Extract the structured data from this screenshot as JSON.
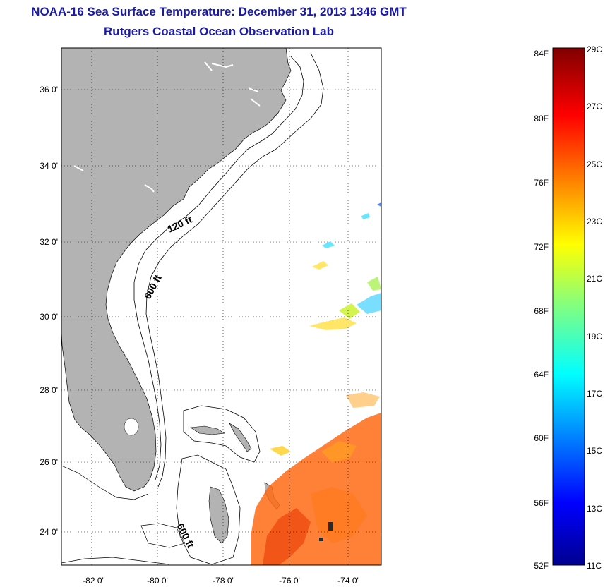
{
  "title": "NOAA-16 Sea Surface Temperature:  December 31, 2013 1346 GMT",
  "subtitle": "Rutgers Coastal Ocean Observation Lab",
  "map": {
    "lon_ticks": [
      "-82 0'",
      "-80 0'",
      "-78 0'",
      "-76 0'",
      "-74 0'"
    ],
    "lat_ticks": [
      "36 0'",
      "34 0'",
      "32 0'",
      "30 0'",
      "28 0'",
      "26 0'",
      "24 0'"
    ],
    "land_color": "#b3b3b3",
    "ocean_color": "#ffffff",
    "depth_labels": [
      "120 ft",
      "600 ft",
      "600 ft"
    ]
  },
  "colorbar": {
    "fahrenheit_labels": [
      "84F",
      "80F",
      "76F",
      "72F",
      "68F",
      "64F",
      "60F",
      "56F",
      "52F"
    ],
    "celsius_labels": [
      "29C",
      "27C",
      "25C",
      "23C",
      "21C",
      "19C",
      "17C",
      "15C",
      "13C",
      "11C"
    ],
    "colormap": "jet"
  }
}
